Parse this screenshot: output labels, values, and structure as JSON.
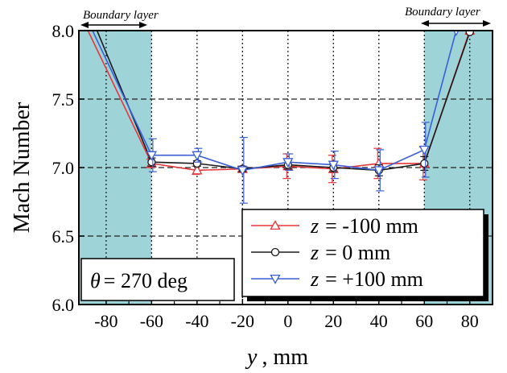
{
  "chart_data": {
    "type": "line",
    "xlabel": "y , mm",
    "xlabel_var": "y",
    "xlabel_unit": ", mm",
    "ylabel": "Mach Number",
    "xlim": [
      -92,
      90
    ],
    "ylim": [
      6.0,
      8.0
    ],
    "x_ticks": [
      -80,
      -60,
      -40,
      -20,
      0,
      20,
      40,
      60,
      80
    ],
    "y_ticks": [
      6.0,
      6.5,
      7.0,
      7.5,
      8.0
    ],
    "y_tick_labels": [
      "6.0",
      "6.5",
      "7.0",
      "7.5",
      "8.0"
    ],
    "grid": true,
    "legend_position": "bottom-right",
    "annotation": {
      "symbol": "θ",
      "text": "= 270 deg"
    },
    "boundary_layer_label": "Boundary layer",
    "boundary_regions": [
      [
        -92,
        -60
      ],
      [
        60,
        90
      ]
    ],
    "colors": {
      "boundary": "#9ed3d8",
      "red": "#e8363a",
      "black": "#1a1a1a",
      "blue": "#3a5fd9"
    },
    "series": [
      {
        "name": "z = -100 mm",
        "legend_var": "z",
        "legend_rest": "= -100 mm",
        "marker": "triangle-up",
        "color": "#e8363a",
        "x": [
          -88,
          -60,
          -40,
          -20,
          0,
          20,
          40,
          60,
          80
        ],
        "y": [
          8.0,
          7.03,
          6.98,
          6.99,
          7.01,
          6.99,
          7.03,
          7.03,
          8.0
        ],
        "err": [
          0,
          0.03,
          0.03,
          0.02,
          0.09,
          0.1,
          0.11,
          0.12,
          0
        ]
      },
      {
        "name": "z = 0 mm",
        "legend_var": "z",
        "legend_rest": "=    0   mm",
        "marker": "circle",
        "color": "#1a1a1a",
        "x": [
          -84,
          -60,
          -40,
          -20,
          0,
          20,
          40,
          60,
          80
        ],
        "y": [
          8.0,
          7.04,
          7.03,
          6.99,
          7.02,
          7.0,
          6.98,
          7.03,
          7.99
        ],
        "err": [
          0,
          0.03,
          0.02,
          0.02,
          0.03,
          0.03,
          0.04,
          0.05,
          0
        ]
      },
      {
        "name": "z = +100 mm",
        "legend_var": "z",
        "legend_rest": "= +100 mm",
        "marker": "triangle-down",
        "color": "#3a5fd9",
        "x": [
          -86,
          -60,
          -40,
          -20,
          0,
          20,
          40,
          60,
          74
        ],
        "y": [
          8.0,
          7.09,
          7.09,
          6.98,
          7.04,
          7.02,
          6.98,
          7.13,
          8.0
        ],
        "err": [
          0,
          0.12,
          0.05,
          0.24,
          0.06,
          0.1,
          0.15,
          0.2,
          0
        ]
      }
    ]
  }
}
